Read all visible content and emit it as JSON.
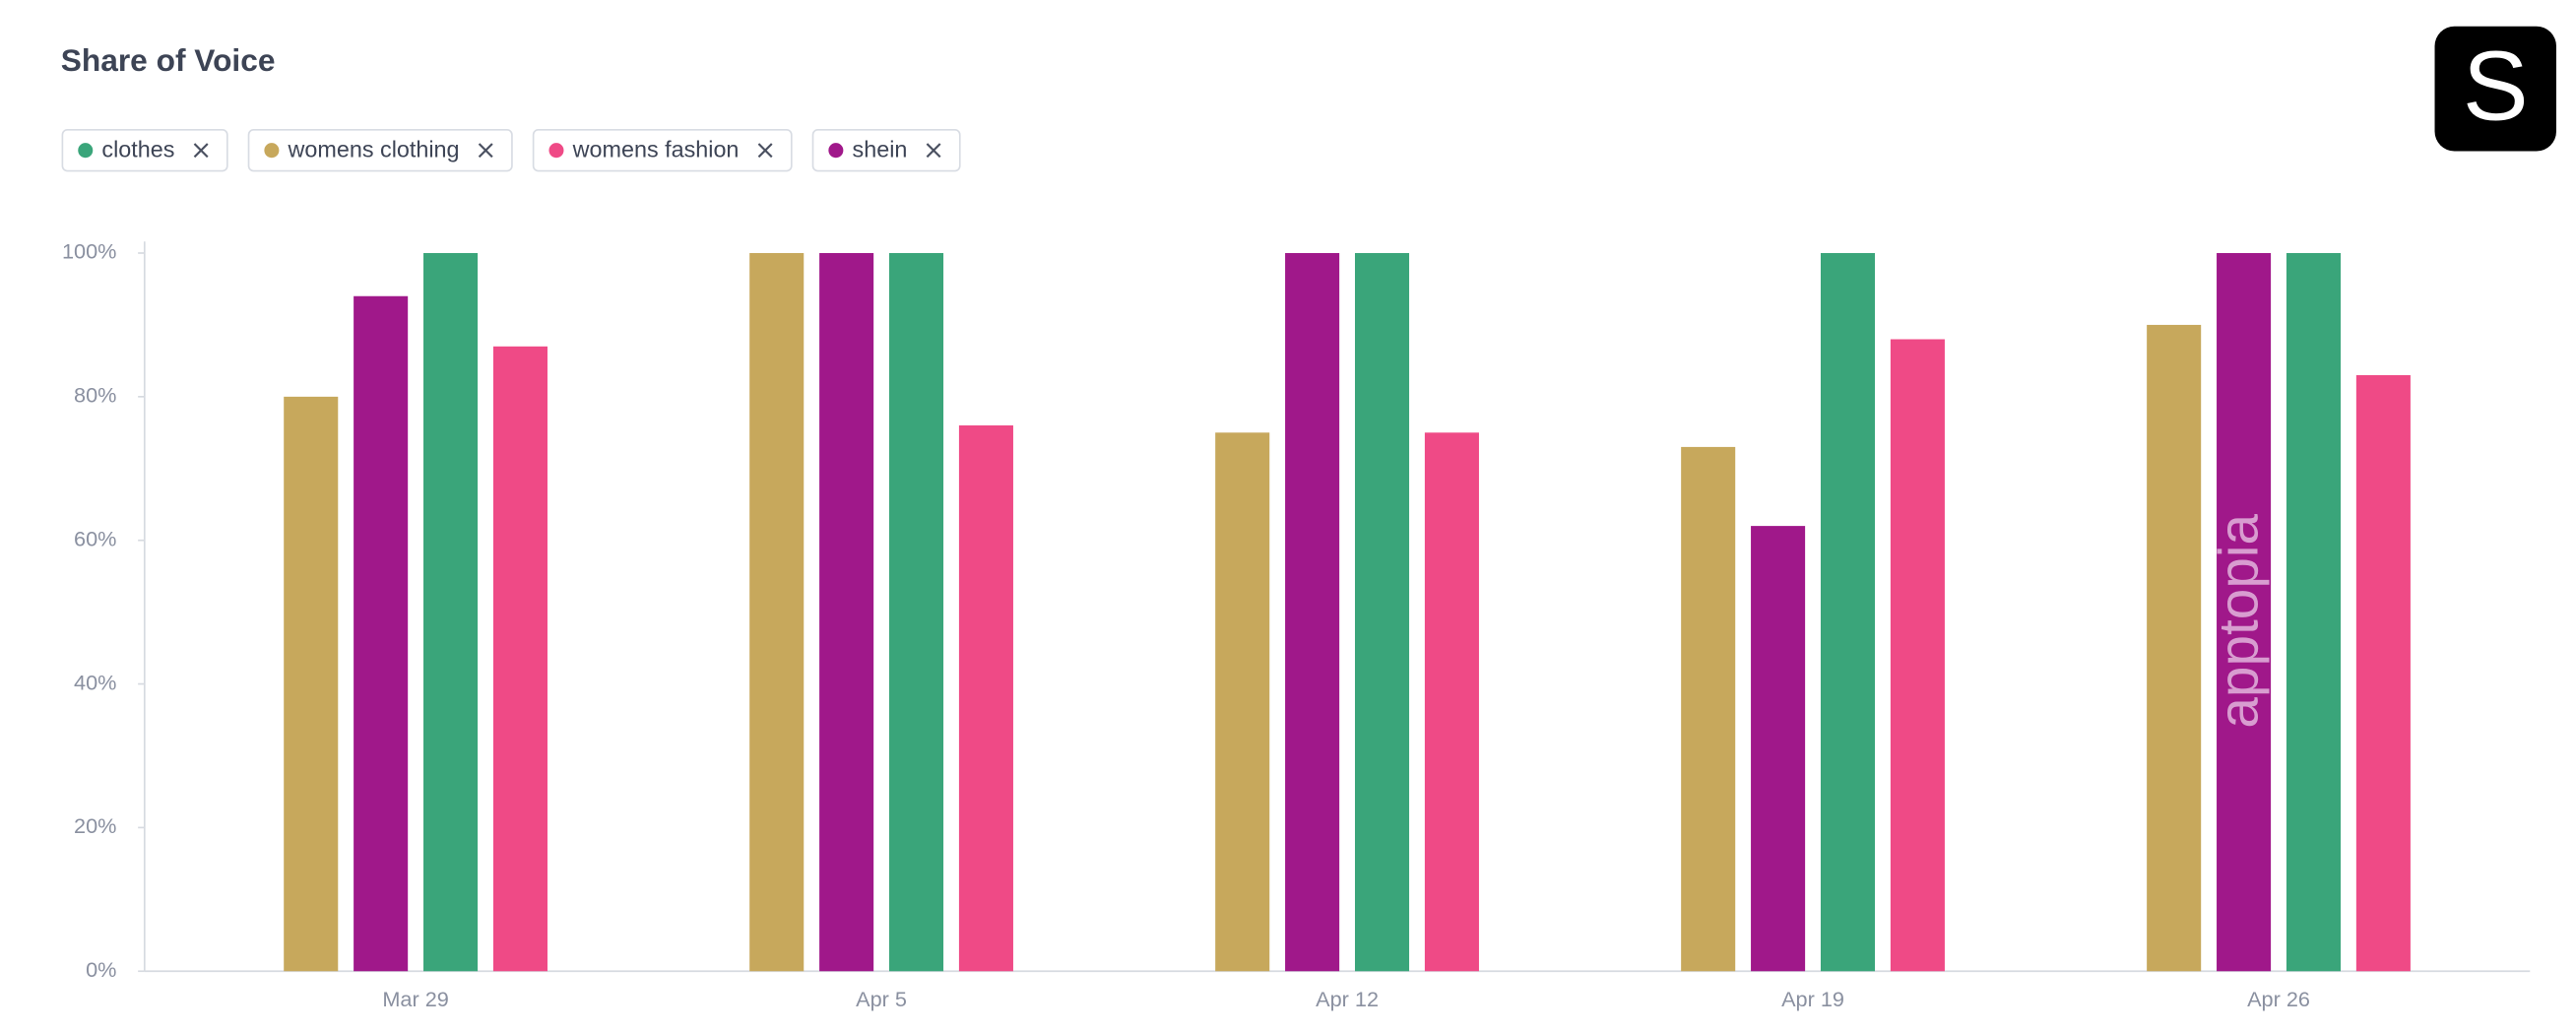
{
  "chart_data": {
    "type": "bar",
    "title": "Share of Voice",
    "categories": [
      "Mar 29",
      "Apr 5",
      "Apr 12",
      "Apr 19",
      "Apr 26"
    ],
    "series": [
      {
        "name": "clothes",
        "color": "#3aa57a",
        "values": [
          100,
          100,
          100,
          100,
          100
        ]
      },
      {
        "name": "womens clothing",
        "color": "#c7a85c",
        "values": [
          80,
          100,
          75,
          73,
          90
        ]
      },
      {
        "name": "womens fashion",
        "color": "#ef4a86",
        "values": [
          87,
          76,
          75,
          88,
          83
        ]
      },
      {
        "name": "shein",
        "color": "#a0188a",
        "values": [
          94,
          100,
          100,
          62,
          100
        ]
      }
    ],
    "ylim": [
      0,
      100
    ],
    "yticks": [
      {
        "value": 0,
        "label": "0%"
      },
      {
        "value": 20,
        "label": "20%"
      },
      {
        "value": 40,
        "label": "40%"
      },
      {
        "value": 60,
        "label": "60%"
      },
      {
        "value": 80,
        "label": "80%"
      },
      {
        "value": 100,
        "label": "100%"
      }
    ],
    "grid": false
  },
  "app_icon": "S",
  "watermark": "apptopia"
}
